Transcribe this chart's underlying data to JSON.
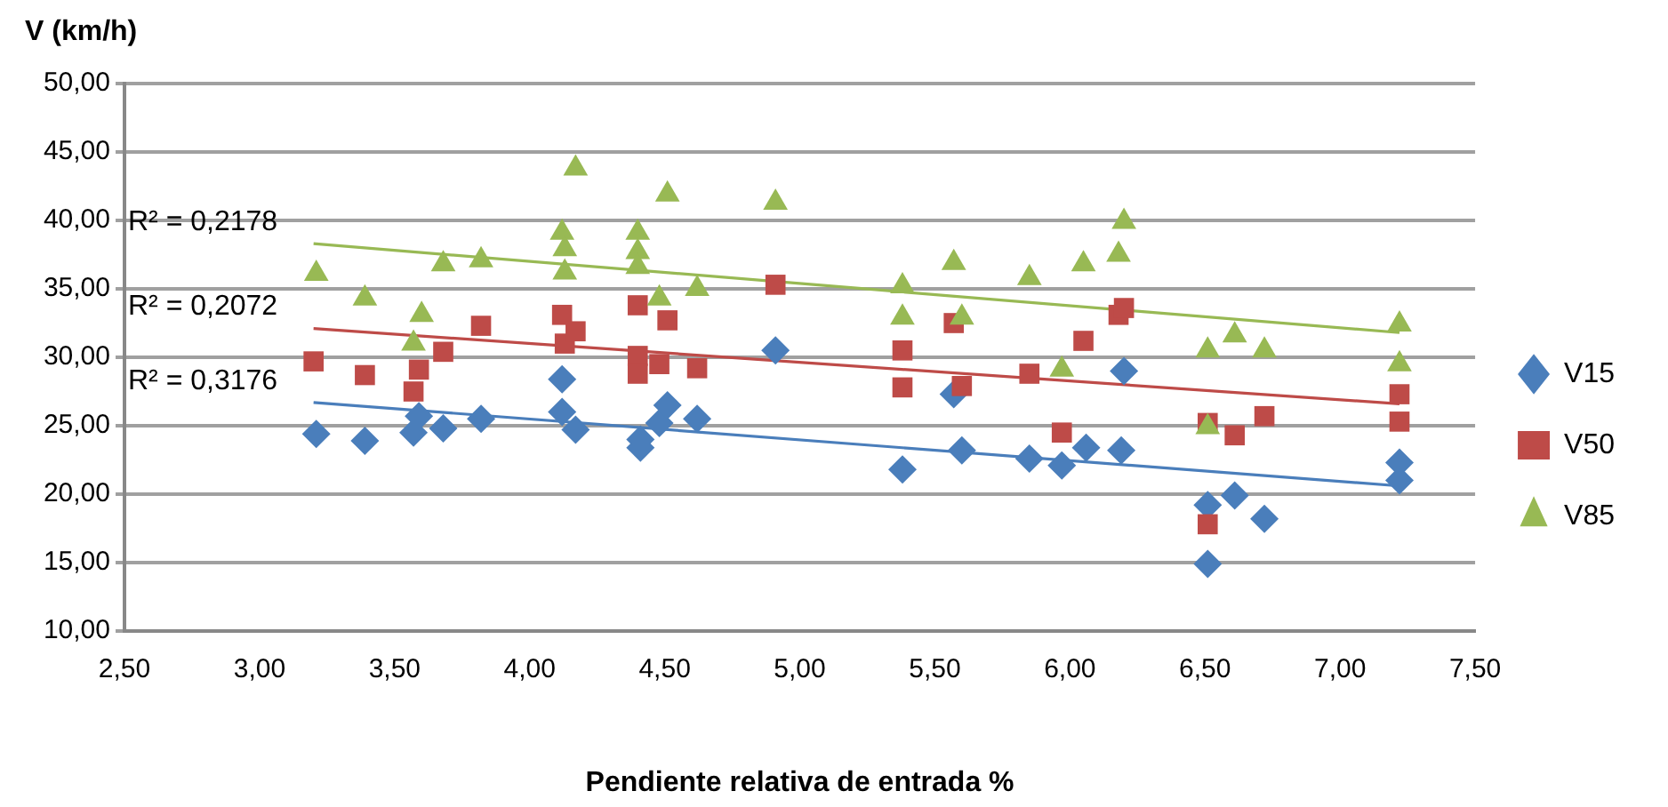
{
  "chart_data": {
    "type": "scatter",
    "ylabel": "V (km/h)",
    "xlabel": "Pendiente relativa de entrada %",
    "xlim": [
      2.5,
      7.5
    ],
    "xticks": [
      {
        "value": 2.5,
        "label": "2,50"
      },
      {
        "value": 3,
        "label": "3,00"
      },
      {
        "value": 3.5,
        "label": "3,50"
      },
      {
        "value": 4,
        "label": "4,00"
      },
      {
        "value": 4.5,
        "label": "4,50"
      },
      {
        "value": 5,
        "label": "5,00"
      },
      {
        "value": 5.5,
        "label": "5,50"
      },
      {
        "value": 6,
        "label": "6,00"
      },
      {
        "value": 6.5,
        "label": "6,50"
      },
      {
        "value": 7,
        "label": "7,00"
      },
      {
        "value": 7.5,
        "label": "7,50"
      }
    ],
    "ylim": [
      10,
      50
    ],
    "yticks": [
      {
        "value": 10,
        "label": "10,00"
      },
      {
        "value": 15,
        "label": "15,00"
      },
      {
        "value": 20,
        "label": "20,00"
      },
      {
        "value": 25,
        "label": "25,00"
      },
      {
        "value": 30,
        "label": "30,00"
      },
      {
        "value": 35,
        "label": "35,00"
      },
      {
        "value": 40,
        "label": "40,00"
      },
      {
        "value": 45,
        "label": "45,00"
      },
      {
        "value": 50,
        "label": "50,00"
      }
    ],
    "grid": "y",
    "legend": "right",
    "series": [
      {
        "name": "V15",
        "color": "#4a7ebb",
        "marker": "diamond",
        "x": [
          3.21,
          3.39,
          3.57,
          3.59,
          3.68,
          3.82,
          4.12,
          4.12,
          4.17,
          4.41,
          4.41,
          4.48,
          4.51,
          4.62,
          4.91,
          5.38,
          5.57,
          5.6,
          5.85,
          5.97,
          6.06,
          6.19,
          6.2,
          6.51,
          6.51,
          6.61,
          6.72,
          7.22,
          7.22
        ],
        "values": [
          24.4,
          23.9,
          24.5,
          25.7,
          24.8,
          25.5,
          28.4,
          26,
          24.7,
          24,
          23.4,
          25.2,
          26.5,
          25.5,
          30.5,
          21.8,
          27.3,
          23.2,
          22.6,
          22.1,
          23.4,
          23.2,
          29,
          19.2,
          14.9,
          19.9,
          18.2,
          22.3,
          21
        ]
      },
      {
        "name": "V50",
        "color": "#be4b48",
        "marker": "square",
        "x": [
          3.2,
          3.39,
          3.57,
          3.59,
          3.68,
          3.82,
          4.12,
          4.13,
          4.17,
          4.4,
          4.4,
          4.4,
          4.48,
          4.51,
          4.62,
          4.91,
          5.38,
          5.38,
          5.57,
          5.6,
          5.85,
          5.97,
          6.05,
          6.18,
          6.2,
          6.51,
          6.51,
          6.61,
          6.72,
          7.22,
          7.22
        ],
        "values": [
          29.7,
          28.7,
          27.5,
          29.1,
          30.4,
          32.3,
          33.1,
          31,
          31.9,
          33.8,
          30.1,
          28.8,
          29.5,
          32.7,
          29.2,
          35.3,
          30.5,
          27.8,
          32.5,
          27.9,
          28.8,
          24.5,
          31.2,
          33.1,
          33.6,
          25.2,
          17.8,
          24.3,
          25.7,
          27.3,
          25.3
        ]
      },
      {
        "name": "V85",
        "color": "#98b954",
        "marker": "triangle",
        "x": [
          3.21,
          3.39,
          3.6,
          3.57,
          3.68,
          3.82,
          4.12,
          4.13,
          4.13,
          4.17,
          4.4,
          4.4,
          4.4,
          4.51,
          4.48,
          4.62,
          4.91,
          5.38,
          5.38,
          5.57,
          5.6,
          5.85,
          5.97,
          6.05,
          6.18,
          6.2,
          6.51,
          6.51,
          6.61,
          6.72,
          7.22,
          7.22
        ],
        "values": [
          36.1,
          34.3,
          33.1,
          31,
          36.8,
          37.1,
          39.1,
          37.9,
          36.2,
          43.8,
          39.1,
          37.7,
          36.6,
          41.9,
          34.3,
          35,
          41.3,
          35.2,
          32.9,
          36.9,
          32.9,
          35.8,
          29.1,
          36.8,
          37.5,
          39.9,
          30.5,
          24.9,
          31.6,
          30.5,
          32.4,
          29.5
        ]
      },
      {
        "type": "line",
        "color": "#98b954",
        "marker": "none",
        "x": [
          3.2,
          7.22
        ],
        "values": [
          38.3,
          31.8
        ]
      },
      {
        "type": "line",
        "color": "#be4b48",
        "marker": "none",
        "x": [
          3.2,
          7.22
        ],
        "values": [
          32.1,
          26.6
        ]
      },
      {
        "type": "line",
        "color": "#4a7ebb",
        "marker": "none",
        "x": [
          3.2,
          7.22
        ],
        "values": [
          26.7,
          20.6
        ]
      }
    ],
    "annotations": [
      "R² = 0,2178",
      "R² = 0,2072",
      "R² = 0,3176"
    ]
  }
}
